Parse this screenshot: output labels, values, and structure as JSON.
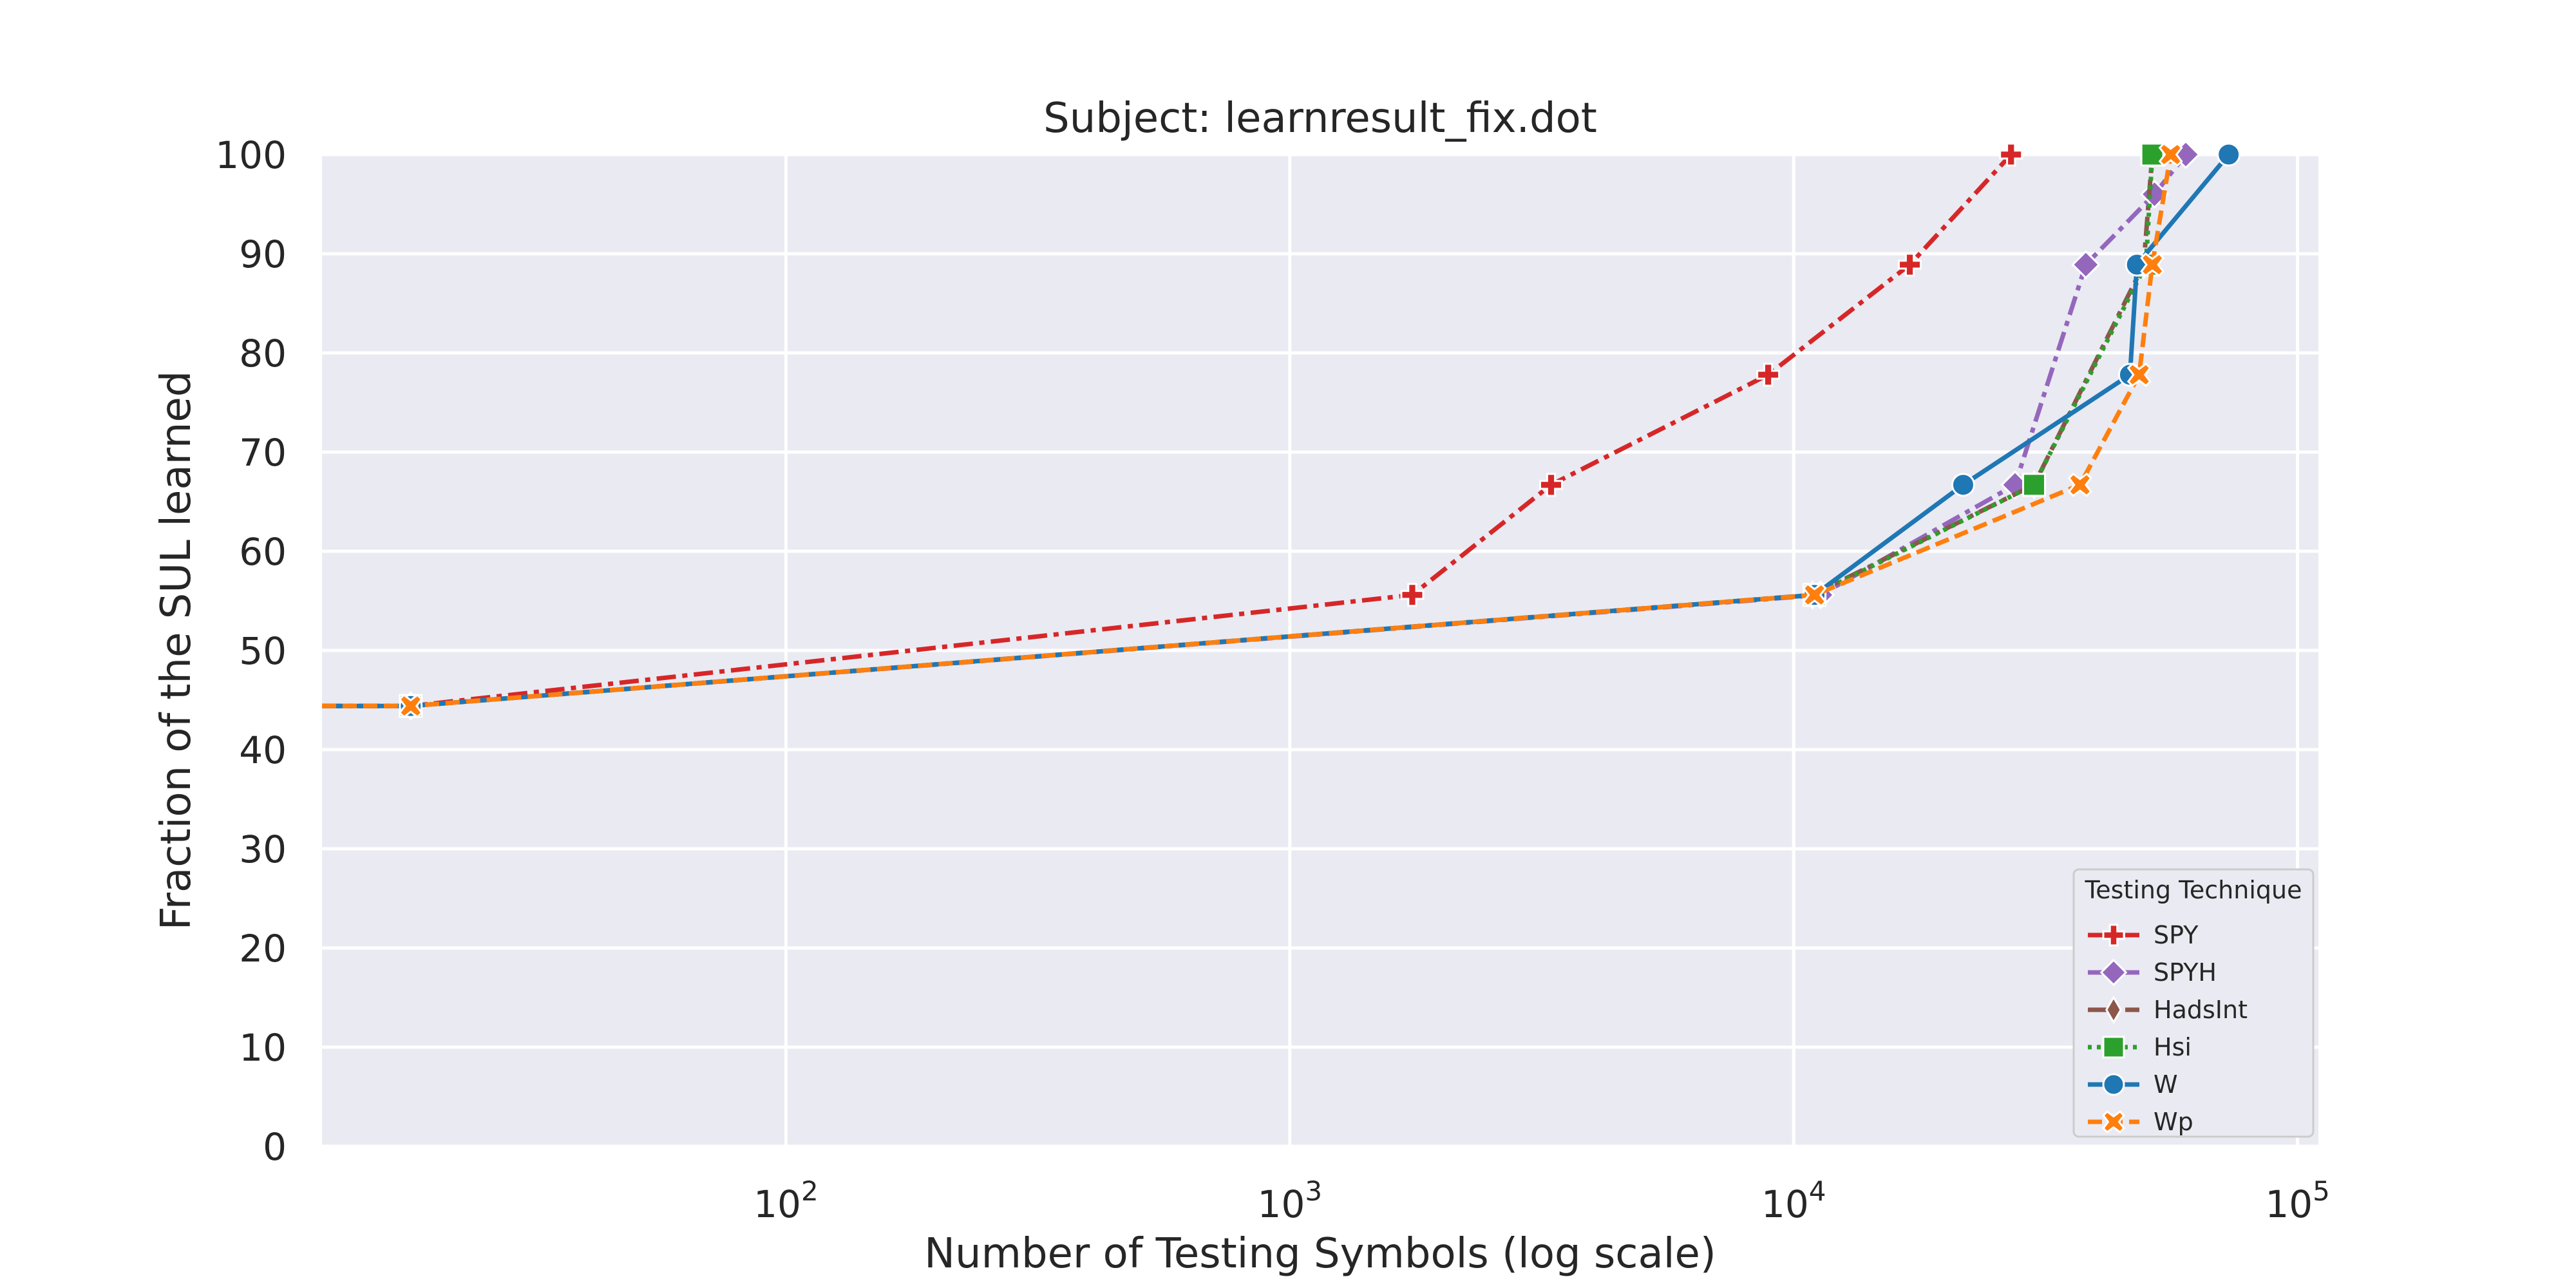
{
  "chart_data": {
    "type": "line",
    "title": "Subject: learnresult_fix.dot",
    "xlabel": "Number of Testing Symbols (log scale)",
    "ylabel": "Fraction of the SUL learned",
    "x_scale": "log",
    "xlim": [
      12,
      110000
    ],
    "ylim": [
      0,
      100
    ],
    "x_ticks": [
      {
        "value": 100,
        "base": "10",
        "exp": "2"
      },
      {
        "value": 1000,
        "base": "10",
        "exp": "3"
      },
      {
        "value": 10000,
        "base": "10",
        "exp": "4"
      },
      {
        "value": 100000,
        "base": "10",
        "exp": "5"
      }
    ],
    "y_ticks": [
      0,
      10,
      20,
      30,
      40,
      50,
      60,
      70,
      80,
      90,
      100
    ],
    "grid": true,
    "legend": {
      "title": "Testing Technique",
      "position": "lower-right"
    },
    "series": [
      {
        "name": "SPY",
        "color": "#d62728",
        "marker": "plus",
        "dash": "30,10,8,10",
        "width": 7,
        "points": [
          [
            12,
            44.4
          ],
          [
            18,
            44.4
          ],
          [
            1750,
            55.6
          ],
          [
            3300,
            66.7
          ],
          [
            8900,
            77.8
          ],
          [
            17000,
            88.9
          ],
          [
            27000,
            100
          ]
        ]
      },
      {
        "name": "SPYH",
        "color": "#9467bd",
        "marker": "diamond",
        "dash": "30,10,8,10",
        "width": 7,
        "points": [
          [
            12,
            44.4
          ],
          [
            18,
            44.4
          ],
          [
            11300,
            55.6
          ],
          [
            27500,
            66.7
          ],
          [
            38000,
            88.9
          ],
          [
            52000,
            96
          ],
          [
            60000,
            100
          ]
        ]
      },
      {
        "name": "HadsInt",
        "color": "#8c564b",
        "marker": "thin-diamond",
        "dash": "30,10,8,10",
        "width": 7,
        "points": [
          [
            12,
            44.4
          ],
          [
            18,
            44.4
          ],
          [
            10900,
            55.6
          ],
          [
            30000,
            66.7
          ],
          [
            49500,
            88.9
          ],
          [
            51500,
            100
          ]
        ]
      },
      {
        "name": "Hsi",
        "color": "#2ca02c",
        "marker": "square",
        "dash": "6,8",
        "width": 7,
        "points": [
          [
            12,
            44.4
          ],
          [
            18,
            44.4
          ],
          [
            11000,
            55.6
          ],
          [
            30000,
            66.7
          ],
          [
            50000,
            88.9
          ],
          [
            51500,
            100
          ]
        ]
      },
      {
        "name": "W",
        "color": "#1f77b4",
        "marker": "circle",
        "dash": "",
        "width": 7,
        "points": [
          [
            12,
            44.4
          ],
          [
            18,
            44.4
          ],
          [
            11000,
            55.6
          ],
          [
            21700,
            66.7
          ],
          [
            46500,
            77.8
          ],
          [
            48000,
            88.9
          ],
          [
            73000,
            100
          ]
        ]
      },
      {
        "name": "Wp",
        "color": "#ff7f0e",
        "marker": "x",
        "dash": "22,10",
        "width": 7,
        "points": [
          [
            12,
            44.4
          ],
          [
            18,
            44.4
          ],
          [
            11000,
            55.6
          ],
          [
            37000,
            66.7
          ],
          [
            48500,
            77.8
          ],
          [
            51500,
            88.9
          ],
          [
            56000,
            100
          ]
        ]
      }
    ]
  }
}
